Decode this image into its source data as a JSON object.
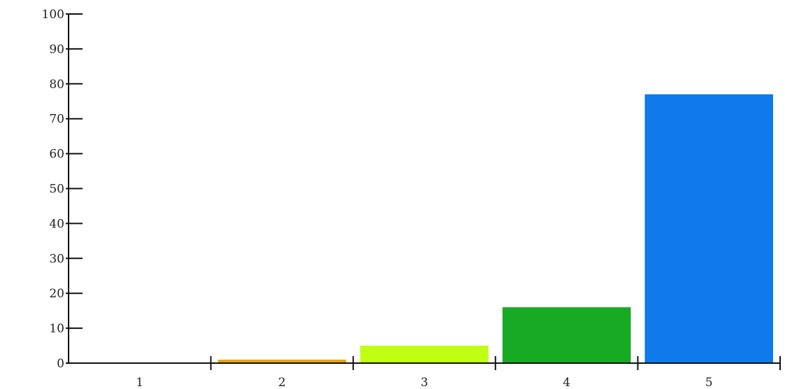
{
  "chart_data": {
    "type": "bar",
    "title": "",
    "xlabel": "",
    "ylabel": "",
    "categories": [
      "1",
      "2",
      "3",
      "4",
      "5"
    ],
    "values": [
      0,
      1,
      5,
      16,
      77
    ],
    "colors": [
      "#888888",
      "#e8a317",
      "#bfff14",
      "#17ab24",
      "#0e7aeb"
    ],
    "ylim": [
      0,
      100
    ],
    "yticks": [
      "0",
      "10",
      "20",
      "30",
      "40",
      "50",
      "60",
      "70",
      "80",
      "90",
      "100"
    ],
    "grid": false,
    "legend": "none"
  }
}
